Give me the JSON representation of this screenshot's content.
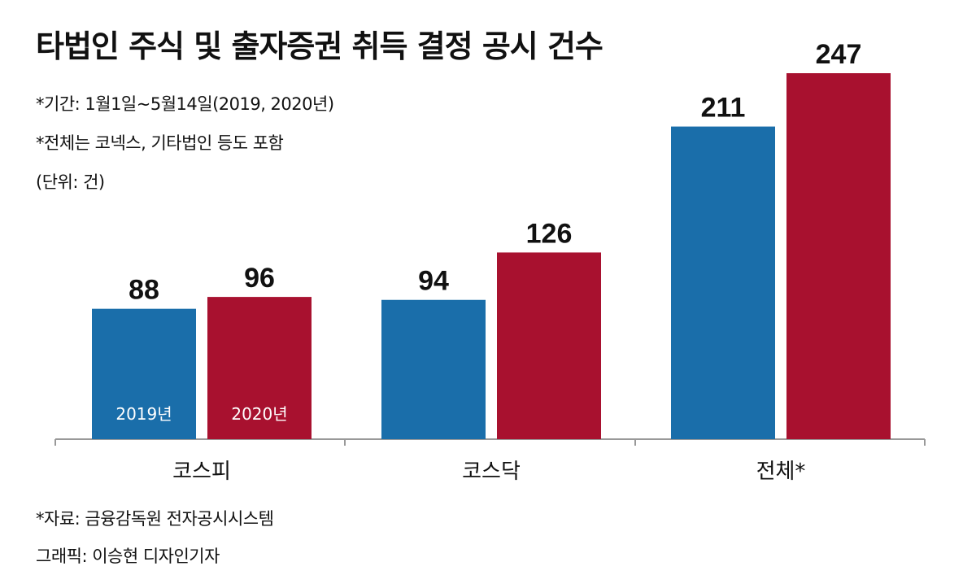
{
  "chart_data": {
    "type": "bar",
    "title": "타법인 주식 및 출자증권 취득 결정 공시 건수",
    "notes": [
      "*기간: 1월1일~5월14일(2019, 2020년)",
      "*전체는 코넥스, 기타법인 등도 포함",
      "(단위: 건)"
    ],
    "categories": [
      "코스피",
      "코스닥",
      "전체*"
    ],
    "series": [
      {
        "name": "2019년",
        "values": [
          88,
          94,
          211
        ],
        "color": "#1a6eaa"
      },
      {
        "name": "2020년",
        "values": [
          96,
          126,
          247
        ],
        "color": "#a8112f"
      }
    ],
    "ylim": [
      0,
      247
    ],
    "legend": "inside-first-group-bars",
    "grid": false
  },
  "footer": {
    "source": "*자료: 금융감독원 전자공시시스템",
    "credit": "그래픽: 이승현 디자인기자"
  }
}
